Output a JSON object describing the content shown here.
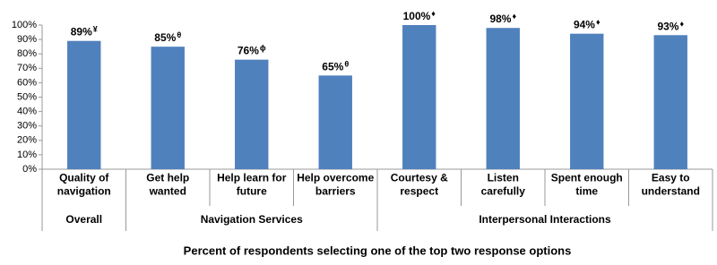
{
  "chart_data": {
    "type": "bar",
    "categories": [
      "Quality of navigation",
      "Get help wanted",
      "Help learn for future",
      "Help overcome barriers",
      "Courtesy & respect",
      "Listen carefully",
      "Spent enough time",
      "Easy to understand"
    ],
    "values": [
      89,
      85,
      76,
      65,
      100,
      98,
      94,
      93
    ],
    "value_labels": [
      "89%",
      "85%",
      "76%",
      "65%",
      "100%",
      "98%",
      "94%",
      "93%"
    ],
    "label_marks": [
      "¥",
      "θ",
      "ϕ",
      "θ",
      "♦",
      "♦",
      "♦",
      "♦"
    ],
    "groups": [
      {
        "name": "Overall",
        "count": 1
      },
      {
        "name": "Navigation Services",
        "count": 3
      },
      {
        "name": "Interpersonal Interactions",
        "count": 4
      }
    ],
    "color": "#4f81bd",
    "ylim": [
      0,
      100
    ],
    "yticks": [
      {
        "value": 0,
        "label": "0%"
      },
      {
        "value": 10,
        "label": "10%"
      },
      {
        "value": 20,
        "label": "20%"
      },
      {
        "value": 30,
        "label": "30%"
      },
      {
        "value": 40,
        "label": "40%"
      },
      {
        "value": 50,
        "label": "50%"
      },
      {
        "value": 60,
        "label": "60%"
      },
      {
        "value": 70,
        "label": "70%"
      },
      {
        "value": 80,
        "label": "80%"
      },
      {
        "value": 90,
        "label": "90%"
      },
      {
        "value": 100,
        "label": "100%"
      }
    ],
    "grid": false,
    "xlabel": "Percent of respondents selecting one of the top two response options"
  }
}
